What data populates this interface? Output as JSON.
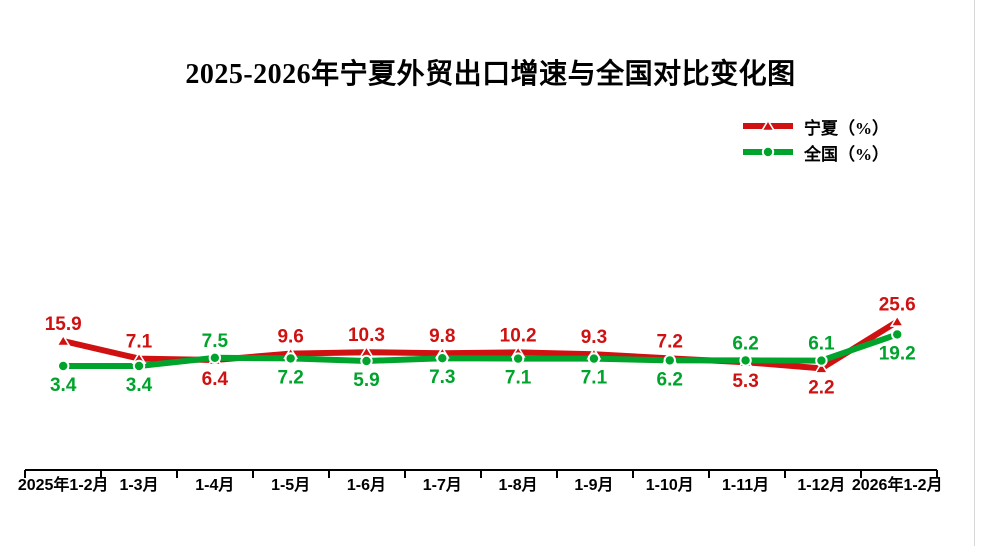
{
  "title": "2025-2026年宁夏外贸出口增速与全国对比变化图",
  "colors": {
    "ningxia_red": "#d01111",
    "national_green": "#00a42c",
    "axis_black": "#000000",
    "border_gray": "#d8d8d8"
  },
  "chart_data": {
    "type": "line",
    "title": "2025-2026年宁夏外贸出口增速与全国对比变化图",
    "categories": [
      "2025年1-2月",
      "1-3月",
      "1-4月",
      "1-5月",
      "1-6月",
      "1-7月",
      "1-8月",
      "1-9月",
      "1-10月",
      "1-11月",
      "1-12月",
      "2026年1-2月"
    ],
    "series": [
      {
        "name": "宁夏（%）",
        "color": "#d01111",
        "marker": "triangle",
        "values": [
          15.9,
          7.1,
          6.4,
          9.6,
          10.3,
          9.8,
          10.2,
          9.3,
          7.2,
          5.3,
          2.2,
          25.6
        ]
      },
      {
        "name": "全国（%）",
        "color": "#00a42c",
        "marker": "circle",
        "values": [
          3.4,
          3.4,
          7.5,
          7.2,
          5.9,
          7.3,
          7.1,
          7.1,
          6.2,
          6.2,
          6.1,
          19.2
        ]
      }
    ],
    "xlabel": "",
    "ylabel": "",
    "grid": false,
    "y_axis_visible": false,
    "x_axis_visible": true,
    "data_labels": true,
    "legend_position": "top-right",
    "data_label_rule": "higher value labeled above point, lower value labeled below point"
  }
}
